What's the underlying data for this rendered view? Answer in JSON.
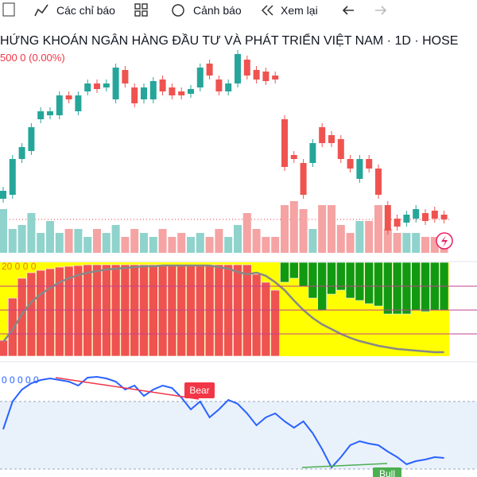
{
  "toolbar": {
    "indicators": "Các chỉ báo",
    "alerts": "Cảnh báo",
    "replay": "Xem lại"
  },
  "header": {
    "title": "HỨNG KHOÁN NGÂN HÀNG ĐẦU TƯ VÀ PHÁT TRIỂN VIỆT NAM · 1D · HOSE",
    "quote": "500  0 (0.00%)"
  },
  "indicator_legend": "20  0  0  0",
  "oscillator_legend": "0  0  0  0  0",
  "labels": {
    "bear": "Bear",
    "bull": "Bull"
  },
  "candles": [
    [
      50,
      60
    ],
    [
      55,
      100
    ],
    [
      100,
      115
    ],
    [
      110,
      140
    ],
    [
      150,
      160
    ],
    [
      155,
      160
    ],
    [
      155,
      180
    ],
    [
      180,
      175
    ],
    [
      160,
      180
    ],
    [
      185,
      195
    ],
    [
      195,
      188
    ],
    [
      190,
      195
    ],
    [
      175,
      215
    ],
    [
      212,
      195
    ],
    [
      190,
      170
    ],
    [
      175,
      190
    ],
    [
      175,
      198
    ],
    [
      200,
      185
    ],
    [
      190,
      180
    ],
    [
      185,
      180
    ],
    [
      182,
      188
    ],
    [
      190,
      215
    ],
    [
      220,
      205
    ],
    [
      200,
      185
    ],
    [
      185,
      195
    ],
    [
      195,
      232
    ],
    [
      225,
      205
    ],
    [
      212,
      200
    ],
    [
      210,
      198
    ],
    [
      205,
      200
    ],
    [
      150,
      90
    ],
    [
      105,
      100
    ],
    [
      95,
      55
    ],
    [
      95,
      120
    ],
    [
      140,
      120
    ],
    [
      130,
      120
    ],
    [
      125,
      100
    ],
    [
      100,
      88
    ],
    [
      75,
      100
    ],
    [
      100,
      88
    ],
    [
      88,
      55
    ],
    [
      42,
      10
    ],
    [
      25,
      15
    ],
    [
      20,
      30
    ],
    [
      25,
      37
    ],
    [
      32,
      22
    ],
    [
      35,
      25
    ],
    [
      30,
      24
    ]
  ],
  "volume": [
    55,
    30,
    35,
    50,
    25,
    40,
    25,
    30,
    30,
    20,
    30,
    25,
    35,
    20,
    30,
    25,
    20,
    30,
    20,
    25,
    20,
    25,
    20,
    30,
    20,
    35,
    50,
    30,
    20,
    20,
    60,
    65,
    55,
    30,
    60,
    60,
    35,
    25,
    40,
    40,
    60,
    30,
    25,
    25,
    25,
    20,
    20,
    15
  ],
  "trend": [
    20,
    73,
    98,
    105,
    108,
    110,
    112,
    113,
    114,
    115,
    115,
    115,
    115,
    115,
    115,
    115,
    115,
    115,
    115,
    115,
    115,
    115,
    115,
    115,
    115,
    115,
    115,
    103,
    93,
    83,
    -25,
    -20,
    -30,
    -45,
    -60,
    -40,
    -35,
    -45,
    -48,
    -52,
    -55,
    -65,
    -65,
    -65,
    -60,
    -62,
    -60,
    -60
  ],
  "trend_line": [
    18,
    33,
    53,
    68,
    78,
    86,
    93,
    98,
    102,
    105,
    107,
    109,
    110,
    111,
    112,
    113,
    113,
    114,
    114,
    114,
    114,
    114,
    114,
    112,
    110,
    106,
    103,
    105,
    101,
    93,
    83,
    70,
    58,
    48,
    40,
    34,
    28,
    23,
    19,
    16,
    13,
    11,
    9,
    8,
    7,
    6,
    5,
    5
  ],
  "oscillator": [
    60,
    95,
    110,
    118,
    122,
    124,
    122,
    120,
    115,
    125,
    126,
    124,
    120,
    110,
    115,
    102,
    110,
    115,
    112,
    100,
    85,
    95,
    75,
    85,
    97,
    92,
    80,
    65,
    75,
    80,
    70,
    62,
    70,
    55,
    35,
    12,
    25,
    40,
    45,
    42,
    40,
    32,
    25,
    16,
    20,
    22,
    25,
    24
  ]
}
